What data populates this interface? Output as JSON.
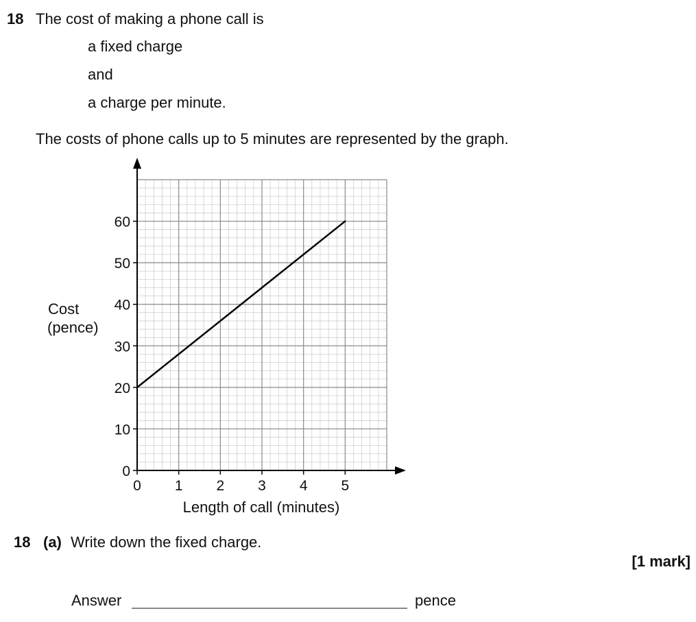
{
  "question": {
    "number": "18",
    "intro": "The cost of making a phone call is",
    "lines": [
      "a fixed charge",
      "and",
      "a charge per minute."
    ],
    "graph_caption": "The costs of phone calls up to 5 minutes are represented by the graph."
  },
  "part_a": {
    "number": "18",
    "label": "(a)",
    "text": "Write down the fixed charge.",
    "marks": "[1 mark]",
    "answer_label": "Answer",
    "answer_unit": "pence"
  },
  "chart_data": {
    "type": "line",
    "xlabel": "Length of call (minutes)",
    "ylabel_lines": [
      "Cost",
      "(pence)"
    ],
    "x_ticks": [
      "0",
      "1",
      "2",
      "3",
      "4",
      "5"
    ],
    "y_ticks": [
      "0",
      "10",
      "20",
      "30",
      "40",
      "50",
      "60"
    ],
    "xlim": [
      0,
      6
    ],
    "ylim": [
      0,
      70
    ],
    "grid": true,
    "series": [
      {
        "x": [
          0,
          5
        ],
        "y": [
          20,
          60
        ]
      }
    ]
  }
}
